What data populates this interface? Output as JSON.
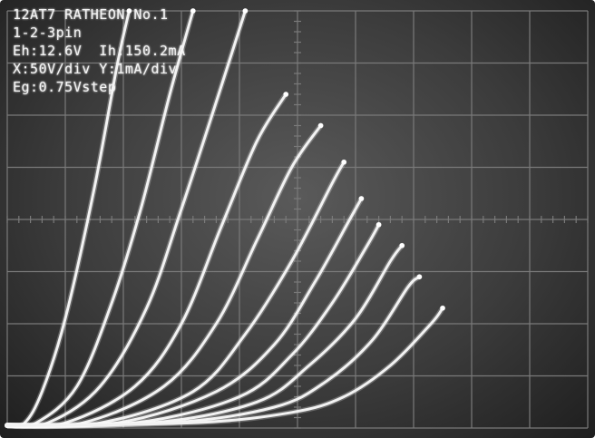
{
  "readout": {
    "line1": "12AT7 RATHEON No.1",
    "line2": "1-2-3pin",
    "line3": "Eh:12.6V  Ih:150.2mA",
    "line4": "X:50V/div Y:1mA/div",
    "line5": "Eg:0.75Vstep"
  },
  "colors": {
    "screen": "#3c3c3c",
    "grid": "#7a7a7a",
    "trace": "#f2f2f2"
  },
  "chart_data": {
    "type": "line",
    "title": "12AT7 RATHEON No.1",
    "xlabel": "X:50V/div",
    "ylabel": "Y:1mA/div",
    "divisions": {
      "x": 10,
      "y": 8
    },
    "xlim": [
      0,
      500
    ],
    "ylim": [
      0,
      8
    ],
    "grid": true,
    "series": [
      {
        "values": [
          [
            0,
            0.05
          ],
          [
            15,
            0.1
          ],
          [
            30,
            0.7
          ],
          [
            50,
            2.1
          ],
          [
            75,
            4.6
          ],
          [
            95,
            7.0
          ],
          [
            105,
            8.0
          ]
        ]
      },
      {
        "values": [
          [
            0,
            0.05
          ],
          [
            25,
            0.1
          ],
          [
            60,
            0.8
          ],
          [
            90,
            2.4
          ],
          [
            115,
            4.2
          ],
          [
            140,
            6.4
          ],
          [
            160,
            8.0
          ]
        ]
      },
      {
        "values": [
          [
            0,
            0.05
          ],
          [
            35,
            0.1
          ],
          [
            80,
            0.8
          ],
          [
            120,
            2.3
          ],
          [
            150,
            4.2
          ],
          [
            185,
            6.6
          ],
          [
            205,
            8.0
          ]
        ]
      },
      {
        "values": [
          [
            0,
            0.05
          ],
          [
            50,
            0.1
          ],
          [
            110,
            0.8
          ],
          [
            150,
            2.0
          ],
          [
            185,
            3.9
          ],
          [
            215,
            5.5
          ],
          [
            240,
            6.4
          ]
        ]
      },
      {
        "values": [
          [
            0,
            0.05
          ],
          [
            65,
            0.1
          ],
          [
            135,
            0.8
          ],
          [
            180,
            2.0
          ],
          [
            215,
            3.6
          ],
          [
            245,
            5.0
          ],
          [
            270,
            5.8
          ]
        ]
      },
      {
        "values": [
          [
            0,
            0.05
          ],
          [
            80,
            0.1
          ],
          [
            160,
            0.7
          ],
          [
            205,
            1.8
          ],
          [
            245,
            3.2
          ],
          [
            280,
            4.7
          ],
          [
            290,
            5.1
          ]
        ]
      },
      {
        "values": [
          [
            0,
            0.05
          ],
          [
            95,
            0.1
          ],
          [
            180,
            0.7
          ],
          [
            230,
            1.6
          ],
          [
            265,
            2.8
          ],
          [
            295,
            4.0
          ],
          [
            305,
            4.4
          ]
        ]
      },
      {
        "values": [
          [
            0,
            0.05
          ],
          [
            110,
            0.1
          ],
          [
            200,
            0.6
          ],
          [
            245,
            1.4
          ],
          [
            280,
            2.4
          ],
          [
            310,
            3.5
          ],
          [
            320,
            3.9
          ]
        ]
      },
      {
        "values": [
          [
            0,
            0.05
          ],
          [
            125,
            0.1
          ],
          [
            215,
            0.5
          ],
          [
            260,
            1.2
          ],
          [
            300,
            2.1
          ],
          [
            330,
            3.2
          ],
          [
            340,
            3.5
          ]
        ]
      },
      {
        "values": [
          [
            0,
            0.05
          ],
          [
            140,
            0.1
          ],
          [
            230,
            0.4
          ],
          [
            275,
            0.9
          ],
          [
            315,
            1.7
          ],
          [
            345,
            2.7
          ],
          [
            355,
            2.9
          ]
        ]
      },
      {
        "values": [
          [
            0,
            0.05
          ],
          [
            160,
            0.1
          ],
          [
            245,
            0.3
          ],
          [
            290,
            0.6
          ],
          [
            330,
            1.2
          ],
          [
            365,
            2.0
          ],
          [
            375,
            2.3
          ]
        ]
      }
    ]
  }
}
